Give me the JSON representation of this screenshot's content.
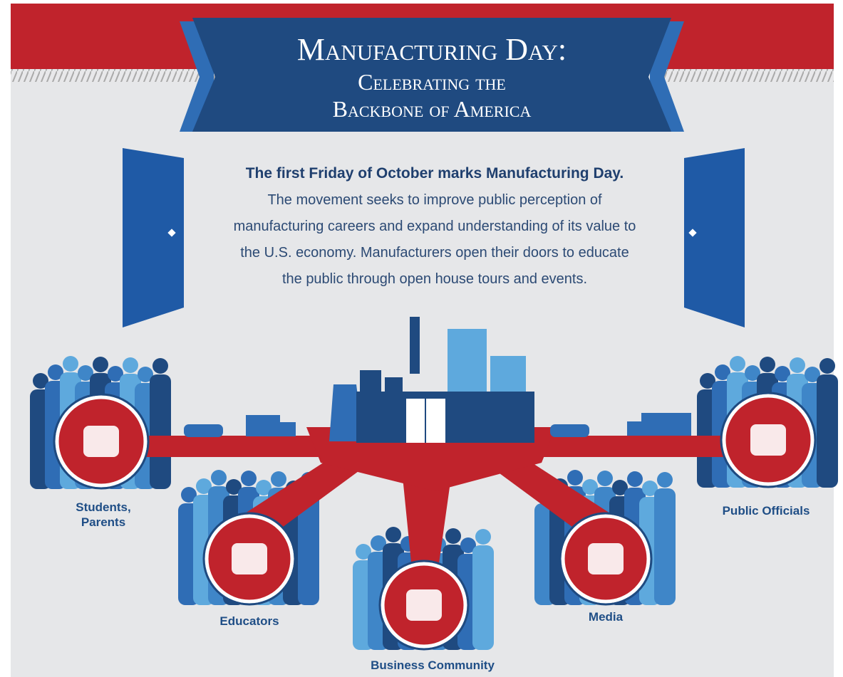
{
  "header": {
    "title": "Manufacturing Day:",
    "subtitle_lines": [
      "Celebrating the",
      "Backbone of America"
    ]
  },
  "intro": {
    "lead": "The first Friday of October marks Manufacturing Day.",
    "body_lines": [
      "The movement seeks to improve public perception of",
      "manufacturing careers and expand understanding of its value to",
      "the U.S. economy. Manufacturers open their doors to educate",
      "the public through open house tours and events."
    ]
  },
  "groups": [
    {
      "label_lines": [
        "Students,",
        "Parents"
      ]
    },
    {
      "label_lines": [
        "Educators"
      ]
    },
    {
      "label_lines": [
        "Business Community"
      ]
    },
    {
      "label_lines": [
        "Media"
      ]
    },
    {
      "label_lines": [
        "Public Officials"
      ]
    }
  ]
}
